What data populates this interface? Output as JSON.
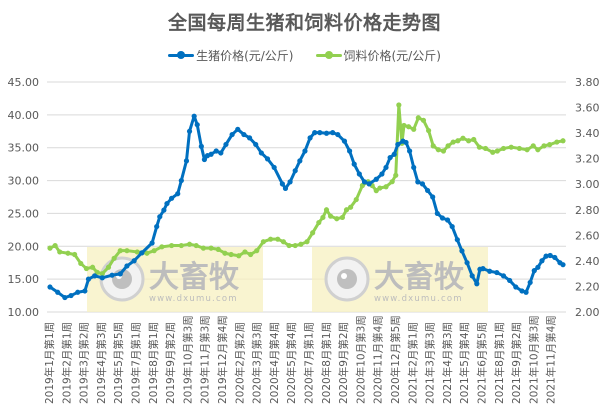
{
  "header": {
    "title": "全国每周生猪和饲料价格走势图"
  },
  "legend": [
    {
      "label": "生猪价格(元/公斤)",
      "color": "#0070c0"
    },
    {
      "label": "饲料价格(元/公斤)",
      "color": "#92d050"
    }
  ],
  "watermark": {
    "brand": "大畜牧",
    "url": "www.dxumu.com"
  },
  "chart_data": {
    "type": "line",
    "title": "全国每周生猪和饲料价格走势图",
    "xlabel": "",
    "ylabel_left": "生猪价格(元/公斤)",
    "ylabel_right": "饲料价格(元/公斤)",
    "ylim_left": [
      10,
      45
    ],
    "ylim_right": [
      2.0,
      3.8
    ],
    "yticks_left": [
      "10.00",
      "15.00",
      "20.00",
      "25.00",
      "30.00",
      "35.00",
      "40.00",
      "45.00"
    ],
    "yticks_right": [
      "2.00",
      "2.20",
      "2.40",
      "2.60",
      "2.80",
      "3.00",
      "3.20",
      "3.40",
      "3.60",
      "3.80"
    ],
    "grid": true,
    "legend_position": "top",
    "categories": [
      "2019年1月第1周",
      "2019年2月第1周",
      "2019年3月第2周",
      "2019年4月第3周",
      "2019年5月第5周",
      "2019年7月第1周",
      "2019年8月第1周",
      "2019年9月第2周",
      "2019年10月第3周",
      "2019年11月第3周",
      "2019年12月第4周",
      "2020年2月第2周",
      "2020年3月第3周",
      "2020年4月第4周",
      "2020年5月第4周",
      "2020年7月第1周",
      "2020年8月第1周",
      "2020年9月第2周",
      "2020年10月第3周",
      "2020年11月第4周",
      "2020年12月第5周",
      "2021年2月第1周",
      "2021年3月第3周",
      "2021年4月第3周",
      "2021年5月第4周",
      "2021年6月第5周",
      "2021年8月第1周",
      "2021年9月第2周",
      "2021年10月第3周",
      "2021年11月第4周"
    ],
    "series": [
      {
        "name": "生猪价格(元/公斤)",
        "axis": "left",
        "color": "#0070c0",
        "x": [
          0,
          0.015,
          0.029,
          0.041,
          0.054,
          0.068,
          0.075,
          0.087,
          0.102,
          0.121,
          0.137,
          0.15,
          0.164,
          0.179,
          0.199,
          0.208,
          0.214,
          0.222,
          0.228,
          0.237,
          0.249,
          0.256,
          0.266,
          0.272,
          0.281,
          0.287,
          0.295,
          0.301,
          0.307,
          0.314,
          0.324,
          0.333,
          0.343,
          0.355,
          0.366,
          0.378,
          0.389,
          0.401,
          0.412,
          0.424,
          0.437,
          0.453,
          0.459,
          0.468,
          0.478,
          0.487,
          0.497,
          0.507,
          0.516,
          0.526,
          0.539,
          0.551,
          0.561,
          0.574,
          0.584,
          0.593,
          0.603,
          0.613,
          0.622,
          0.636,
          0.647,
          0.655,
          0.663,
          0.671,
          0.678,
          0.688,
          0.694,
          0.701,
          0.709,
          0.717,
          0.726,
          0.736,
          0.746,
          0.755,
          0.765,
          0.775,
          0.784,
          0.794,
          0.803,
          0.813,
          0.823,
          0.832,
          0.838,
          0.844,
          0.857,
          0.871,
          0.884,
          0.896,
          0.908,
          0.92,
          0.928,
          0.936,
          0.944,
          0.951,
          0.959,
          0.967,
          0.975,
          0.984,
          0.994,
          1.0
        ],
        "values": [
          13.8,
          13.0,
          12.2,
          12.5,
          13.0,
          13.2,
          15.0,
          15.5,
          15.2,
          15.6,
          15.8,
          17.0,
          17.8,
          19.0,
          20.5,
          23.0,
          24.5,
          25.5,
          26.5,
          27.3,
          28.0,
          30.0,
          33.0,
          37.5,
          39.8,
          38.5,
          35.2,
          33.2,
          33.8,
          34.0,
          34.5,
          34.2,
          35.5,
          37.0,
          37.8,
          37.0,
          36.5,
          35.5,
          34.2,
          33.3,
          32.0,
          29.5,
          28.8,
          29.8,
          31.5,
          33.0,
          34.5,
          36.5,
          37.3,
          37.3,
          37.2,
          37.3,
          37.0,
          36.0,
          34.5,
          32.5,
          31.0,
          29.8,
          29.5,
          30.2,
          31.0,
          32.0,
          33.5,
          34.0,
          35.5,
          36.0,
          35.8,
          34.5,
          32.0,
          29.8,
          29.5,
          28.5,
          27.5,
          25.0,
          24.3,
          24.0,
          23.0,
          21.0,
          19.3,
          17.5,
          15.5,
          14.3,
          16.5,
          16.6,
          16.2,
          16.0,
          15.5,
          14.8,
          13.8,
          13.2,
          13.0,
          14.5,
          16.3,
          16.8,
          17.8,
          18.5,
          18.6,
          18.3,
          17.5,
          17.2
        ]
      },
      {
        "name": "饲料价格(元/公斤)",
        "axis": "right",
        "color": "#92d050",
        "x": [
          0,
          0.01,
          0.019,
          0.035,
          0.048,
          0.06,
          0.071,
          0.083,
          0.092,
          0.102,
          0.114,
          0.125,
          0.137,
          0.15,
          0.17,
          0.189,
          0.203,
          0.218,
          0.237,
          0.256,
          0.272,
          0.285,
          0.299,
          0.314,
          0.328,
          0.341,
          0.353,
          0.368,
          0.38,
          0.391,
          0.403,
          0.416,
          0.43,
          0.444,
          0.455,
          0.466,
          0.478,
          0.489,
          0.501,
          0.512,
          0.524,
          0.532,
          0.539,
          0.547,
          0.559,
          0.57,
          0.578,
          0.586,
          0.597,
          0.609,
          0.62,
          0.628,
          0.636,
          0.643,
          0.655,
          0.667,
          0.674,
          0.68,
          0.686,
          0.69,
          0.699,
          0.709,
          0.718,
          0.728,
          0.738,
          0.747,
          0.757,
          0.767,
          0.776,
          0.786,
          0.795,
          0.805,
          0.816,
          0.826,
          0.837,
          0.849,
          0.863,
          0.872,
          0.884,
          0.899,
          0.915,
          0.93,
          0.942,
          0.951,
          0.963,
          0.974,
          0.988,
          1.0
        ],
        "values": [
          2.5,
          2.52,
          2.47,
          2.46,
          2.45,
          2.38,
          2.34,
          2.35,
          2.31,
          2.3,
          2.35,
          2.42,
          2.48,
          2.48,
          2.47,
          2.46,
          2.48,
          2.51,
          2.52,
          2.52,
          2.53,
          2.52,
          2.5,
          2.5,
          2.49,
          2.46,
          2.45,
          2.44,
          2.47,
          2.45,
          2.48,
          2.55,
          2.57,
          2.57,
          2.55,
          2.52,
          2.52,
          2.53,
          2.55,
          2.62,
          2.7,
          2.74,
          2.8,
          2.75,
          2.73,
          2.74,
          2.8,
          2.82,
          2.88,
          2.99,
          3.02,
          2.99,
          2.95,
          2.97,
          2.98,
          3.02,
          3.07,
          3.62,
          3.32,
          3.46,
          3.45,
          3.43,
          3.52,
          3.5,
          3.42,
          3.3,
          3.27,
          3.26,
          3.3,
          3.33,
          3.34,
          3.36,
          3.34,
          3.35,
          3.29,
          3.28,
          3.25,
          3.26,
          3.28,
          3.29,
          3.28,
          3.27,
          3.3,
          3.27,
          3.3,
          3.31,
          3.33,
          3.34
        ]
      }
    ]
  }
}
